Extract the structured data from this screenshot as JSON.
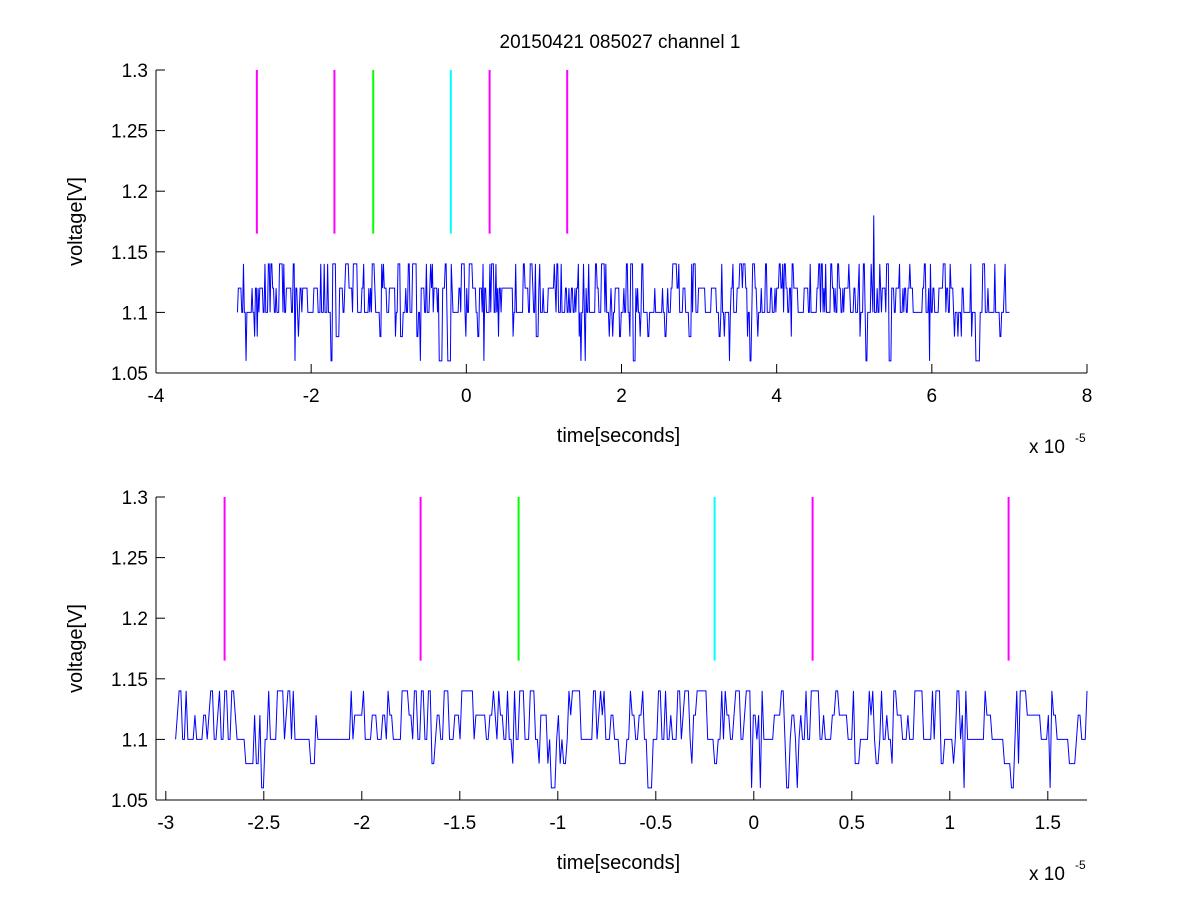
{
  "figure": {
    "title": "20150421 085027 channel 1",
    "exponent_label_prefix": "x 10",
    "exponent_label_power": "-5"
  },
  "chart_data": [
    {
      "type": "line",
      "title": "20150421 085027 channel 1",
      "xlabel": "time[seconds]",
      "ylabel": "voltage[V]",
      "x_scale_note": "x 10^-5",
      "xlim": [
        -4e-05,
        8e-05
      ],
      "ylim": [
        1.05,
        1.3
      ],
      "x_ticks": [
        -4,
        -2,
        0,
        2,
        4,
        6,
        8
      ],
      "x_tick_labels": [
        "-4",
        "-2",
        "0",
        "2",
        "4",
        "6",
        "8"
      ],
      "y_ticks": [
        1.05,
        1.1,
        1.15,
        1.2,
        1.25,
        1.3
      ],
      "y_tick_labels": [
        "1.05",
        "1.1",
        "1.15",
        "1.2",
        "1.25",
        "1.3"
      ],
      "grid": false,
      "signal": {
        "color": "#0000ff",
        "x_range": [
          -2.95e-05,
          7e-05
        ],
        "levels": [
          1.06,
          1.08,
          1.1,
          1.12,
          1.14
        ],
        "baseline": 1.1,
        "spike": {
          "x": 5.25e-05,
          "y": 1.18
        }
      },
      "markers": [
        {
          "x": -2.7e-05,
          "y_from": 1.165,
          "y_to": 1.3,
          "color": "#ff00ff"
        },
        {
          "x": -1.7e-05,
          "y_from": 1.165,
          "y_to": 1.3,
          "color": "#ff00ff"
        },
        {
          "x": -1.2e-05,
          "y_from": 1.165,
          "y_to": 1.3,
          "color": "#00ff00"
        },
        {
          "x": -2e-06,
          "y_from": 1.165,
          "y_to": 1.3,
          "color": "#00ffff"
        },
        {
          "x": 3e-06,
          "y_from": 1.165,
          "y_to": 1.3,
          "color": "#ff00ff"
        },
        {
          "x": 1.3e-05,
          "y_from": 1.165,
          "y_to": 1.3,
          "color": "#ff00ff"
        }
      ]
    },
    {
      "type": "line",
      "title": "",
      "xlabel": "time[seconds]",
      "ylabel": "voltage[V]",
      "x_scale_note": "x 10^-5",
      "xlim": [
        -3.05e-05,
        1.7e-05
      ],
      "ylim": [
        1.05,
        1.3
      ],
      "x_ticks": [
        -3,
        -2.5,
        -2,
        -1.5,
        -1,
        -0.5,
        0,
        0.5,
        1,
        1.5
      ],
      "x_tick_labels": [
        "-3",
        "-2.5",
        "-2",
        "-1.5",
        "-1",
        "-0.5",
        "0",
        "0.5",
        "1",
        "1.5"
      ],
      "y_ticks": [
        1.05,
        1.1,
        1.15,
        1.2,
        1.25,
        1.3
      ],
      "y_tick_labels": [
        "1.05",
        "1.1",
        "1.15",
        "1.2",
        "1.25",
        "1.3"
      ],
      "grid": false,
      "signal": {
        "color": "#0000ff",
        "x_range": [
          -2.95e-05,
          1.7e-05
        ],
        "levels": [
          1.06,
          1.08,
          1.1,
          1.12,
          1.14
        ],
        "baseline": 1.1
      },
      "markers": [
        {
          "x": -2.7e-05,
          "y_from": 1.165,
          "y_to": 1.3,
          "color": "#ff00ff"
        },
        {
          "x": -1.7e-05,
          "y_from": 1.165,
          "y_to": 1.3,
          "color": "#ff00ff"
        },
        {
          "x": -1.2e-05,
          "y_from": 1.165,
          "y_to": 1.3,
          "color": "#00ff00"
        },
        {
          "x": -2e-06,
          "y_from": 1.165,
          "y_to": 1.3,
          "color": "#00ffff"
        },
        {
          "x": 3e-06,
          "y_from": 1.165,
          "y_to": 1.3,
          "color": "#ff00ff"
        },
        {
          "x": 1.3e-05,
          "y_from": 1.165,
          "y_to": 1.3,
          "color": "#ff00ff"
        }
      ]
    }
  ]
}
